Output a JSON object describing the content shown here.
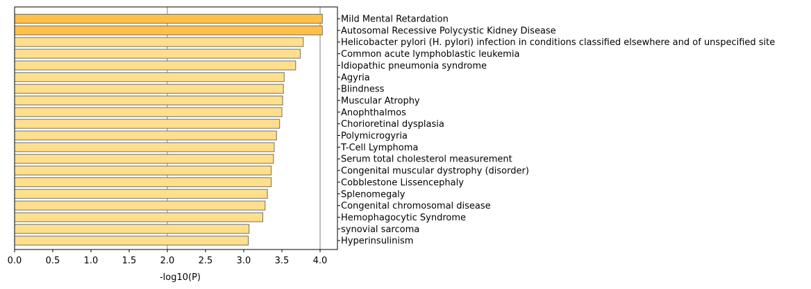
{
  "chart_data": {
    "type": "bar",
    "orientation": "horizontal",
    "xlabel": "-log10(P)",
    "xlim": [
      0,
      4.22
    ],
    "xticks": [
      "0.0",
      "0.5",
      "1.0",
      "1.5",
      "2.0",
      "2.5",
      "3.0",
      "3.5",
      "4.0"
    ],
    "reference_lines": [
      2.0,
      4.0
    ],
    "grid": false,
    "legend": "none",
    "colors": {
      "highlight": "#ffc04a",
      "normal": "#ffdf8c",
      "bar_edge": "#707070",
      "reference_line": "#aaaaaa"
    },
    "bars": [
      {
        "label": "Mild Mental Retardation",
        "value": 4.03,
        "highlight": true
      },
      {
        "label": "Autosomal Recessive Polycystic Kidney Disease",
        "value": 4.03,
        "highlight": true
      },
      {
        "label": "Helicobacter pylori (H. pylori) infection in conditions classified elsewhere and of unspecified site",
        "value": 3.78,
        "highlight": false
      },
      {
        "label": "Common acute lymphoblastic leukemia",
        "value": 3.74,
        "highlight": false
      },
      {
        "label": "Idiopathic pneumonia syndrome",
        "value": 3.68,
        "highlight": false
      },
      {
        "label": "Agyria",
        "value": 3.53,
        "highlight": false
      },
      {
        "label": "Blindness",
        "value": 3.52,
        "highlight": false
      },
      {
        "label": "Muscular Atrophy",
        "value": 3.51,
        "highlight": false
      },
      {
        "label": "Anophthalmos",
        "value": 3.5,
        "highlight": false
      },
      {
        "label": "Chorioretinal dysplasia",
        "value": 3.47,
        "highlight": false
      },
      {
        "label": "Polymicrogyria",
        "value": 3.43,
        "highlight": false
      },
      {
        "label": "T-Cell Lymphoma",
        "value": 3.4,
        "highlight": false
      },
      {
        "label": "Serum total cholesterol measurement",
        "value": 3.39,
        "highlight": false
      },
      {
        "label": "Congenital muscular dystrophy (disorder)",
        "value": 3.36,
        "highlight": false
      },
      {
        "label": "Cobblestone Lissencephaly",
        "value": 3.36,
        "highlight": false
      },
      {
        "label": "Splenomegaly",
        "value": 3.31,
        "highlight": false
      },
      {
        "label": "Congenital chromosomal disease",
        "value": 3.28,
        "highlight": false
      },
      {
        "label": "Hemophagocytic Syndrome",
        "value": 3.25,
        "highlight": false
      },
      {
        "label": "synovial sarcoma",
        "value": 3.07,
        "highlight": false
      },
      {
        "label": "Hyperinsulinism",
        "value": 3.06,
        "highlight": false
      }
    ]
  }
}
